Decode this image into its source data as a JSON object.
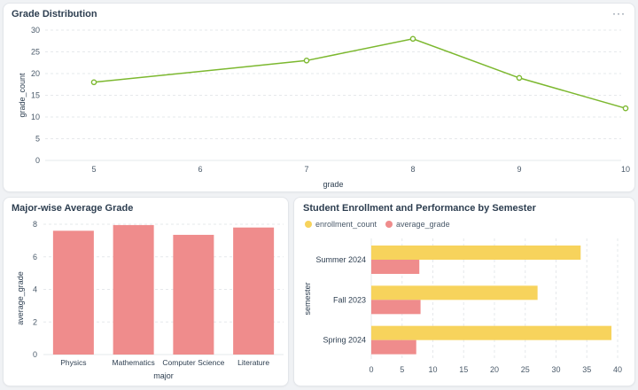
{
  "cards": {
    "grade_distribution": {
      "title": "Grade Distribution",
      "more": "···"
    },
    "major_average": {
      "title": "Major-wise Average Grade"
    },
    "enrollment": {
      "title": "Student Enrollment and Performance by Semester"
    }
  },
  "colors": {
    "line": "#7cb82f",
    "bar_red": "#ef8c8c",
    "bar_yellow": "#f7d35c",
    "grid": "#e6e8eb",
    "axis_text": "#4a5a6a"
  },
  "chart_data": [
    {
      "id": "grade_distribution",
      "type": "line",
      "title": "Grade Distribution",
      "xlabel": "grade",
      "ylabel": "grade_count",
      "x_ticks": [
        5,
        6,
        7,
        8,
        9,
        10
      ],
      "y_ticks": [
        0,
        5,
        10,
        15,
        20,
        25,
        30
      ],
      "ylim": [
        0,
        30
      ],
      "xlim": [
        5,
        10
      ],
      "points": [
        {
          "x": 5,
          "y": 18
        },
        {
          "x": 7,
          "y": 23
        },
        {
          "x": 8,
          "y": 28
        },
        {
          "x": 9,
          "y": 19
        },
        {
          "x": 10,
          "y": 12
        }
      ]
    },
    {
      "id": "major_average",
      "type": "bar",
      "title": "Major-wise Average Grade",
      "xlabel": "major",
      "ylabel": "average_grade",
      "categories": [
        "Physics",
        "Mathematics",
        "Computer Science",
        "Literature"
      ],
      "values": [
        7.6,
        7.95,
        7.35,
        7.8
      ],
      "y_ticks": [
        0,
        2,
        4,
        6,
        8
      ],
      "ylim": [
        0,
        8
      ]
    },
    {
      "id": "enrollment",
      "type": "bar",
      "orientation": "horizontal",
      "title": "Student Enrollment and Performance by Semester",
      "ylabel": "semester",
      "categories": [
        "Summer 2024",
        "Fall 2023",
        "Spring 2024"
      ],
      "series": [
        {
          "name": "enrollment_count",
          "values": [
            34,
            27,
            39
          ]
        },
        {
          "name": "average_grade",
          "values": [
            7.8,
            8.0,
            7.3
          ]
        }
      ],
      "x_ticks": [
        0,
        5,
        10,
        15,
        20,
        25,
        30,
        35,
        40
      ],
      "xlim": [
        0,
        40
      ]
    }
  ]
}
